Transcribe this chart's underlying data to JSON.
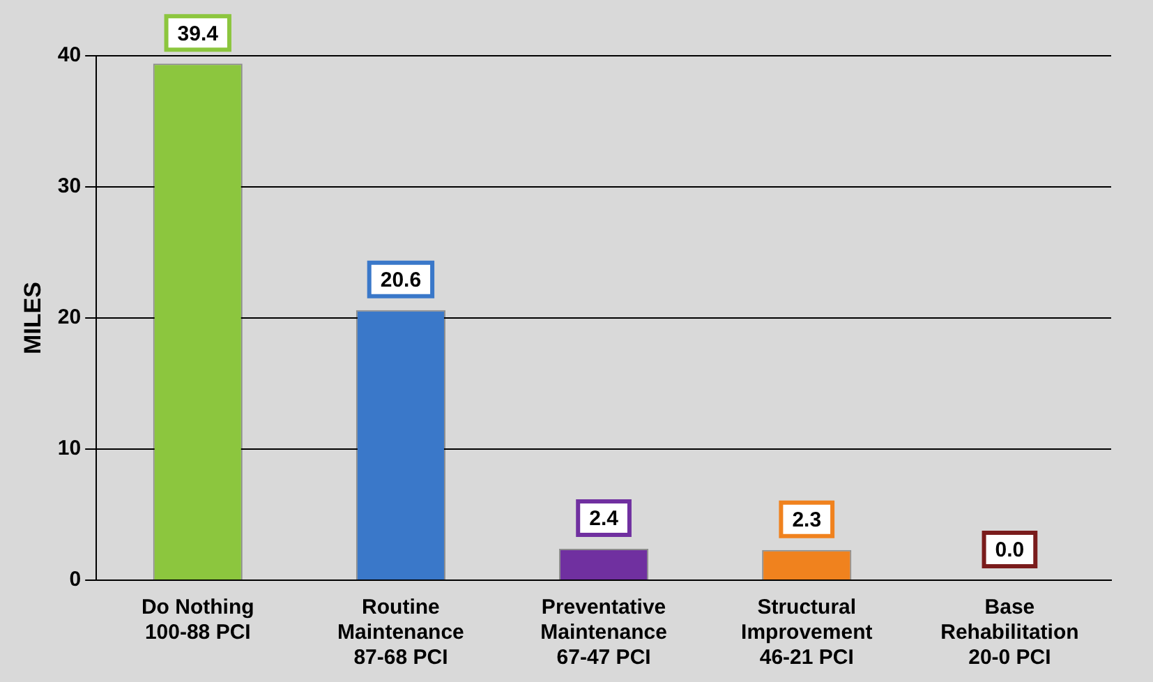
{
  "chart_data": {
    "type": "bar",
    "ylabel": "MILES",
    "categories": [
      "Do Nothing\n100-88 PCI",
      "Routine\nMaintenance\n87-68 PCI",
      "Preventative\nMaintenance\n67-47 PCI",
      "Structural\nImprovement\n46-21 PCI",
      "Base\nRehabilitation\n20-0 PCI"
    ],
    "values": [
      39.4,
      20.6,
      2.4,
      2.3,
      0.0
    ],
    "colors": [
      "#8cc63e",
      "#3a78c9",
      "#7030a0",
      "#f0821e",
      "#7a1c1c"
    ],
    "ylim": [
      0,
      40
    ],
    "yticks": [
      0,
      10,
      20,
      30,
      40
    ],
    "value_labels": [
      "39.4",
      "20.6",
      "2.4",
      "2.3",
      "0.0"
    ],
    "grid": "y",
    "legend": false
  }
}
